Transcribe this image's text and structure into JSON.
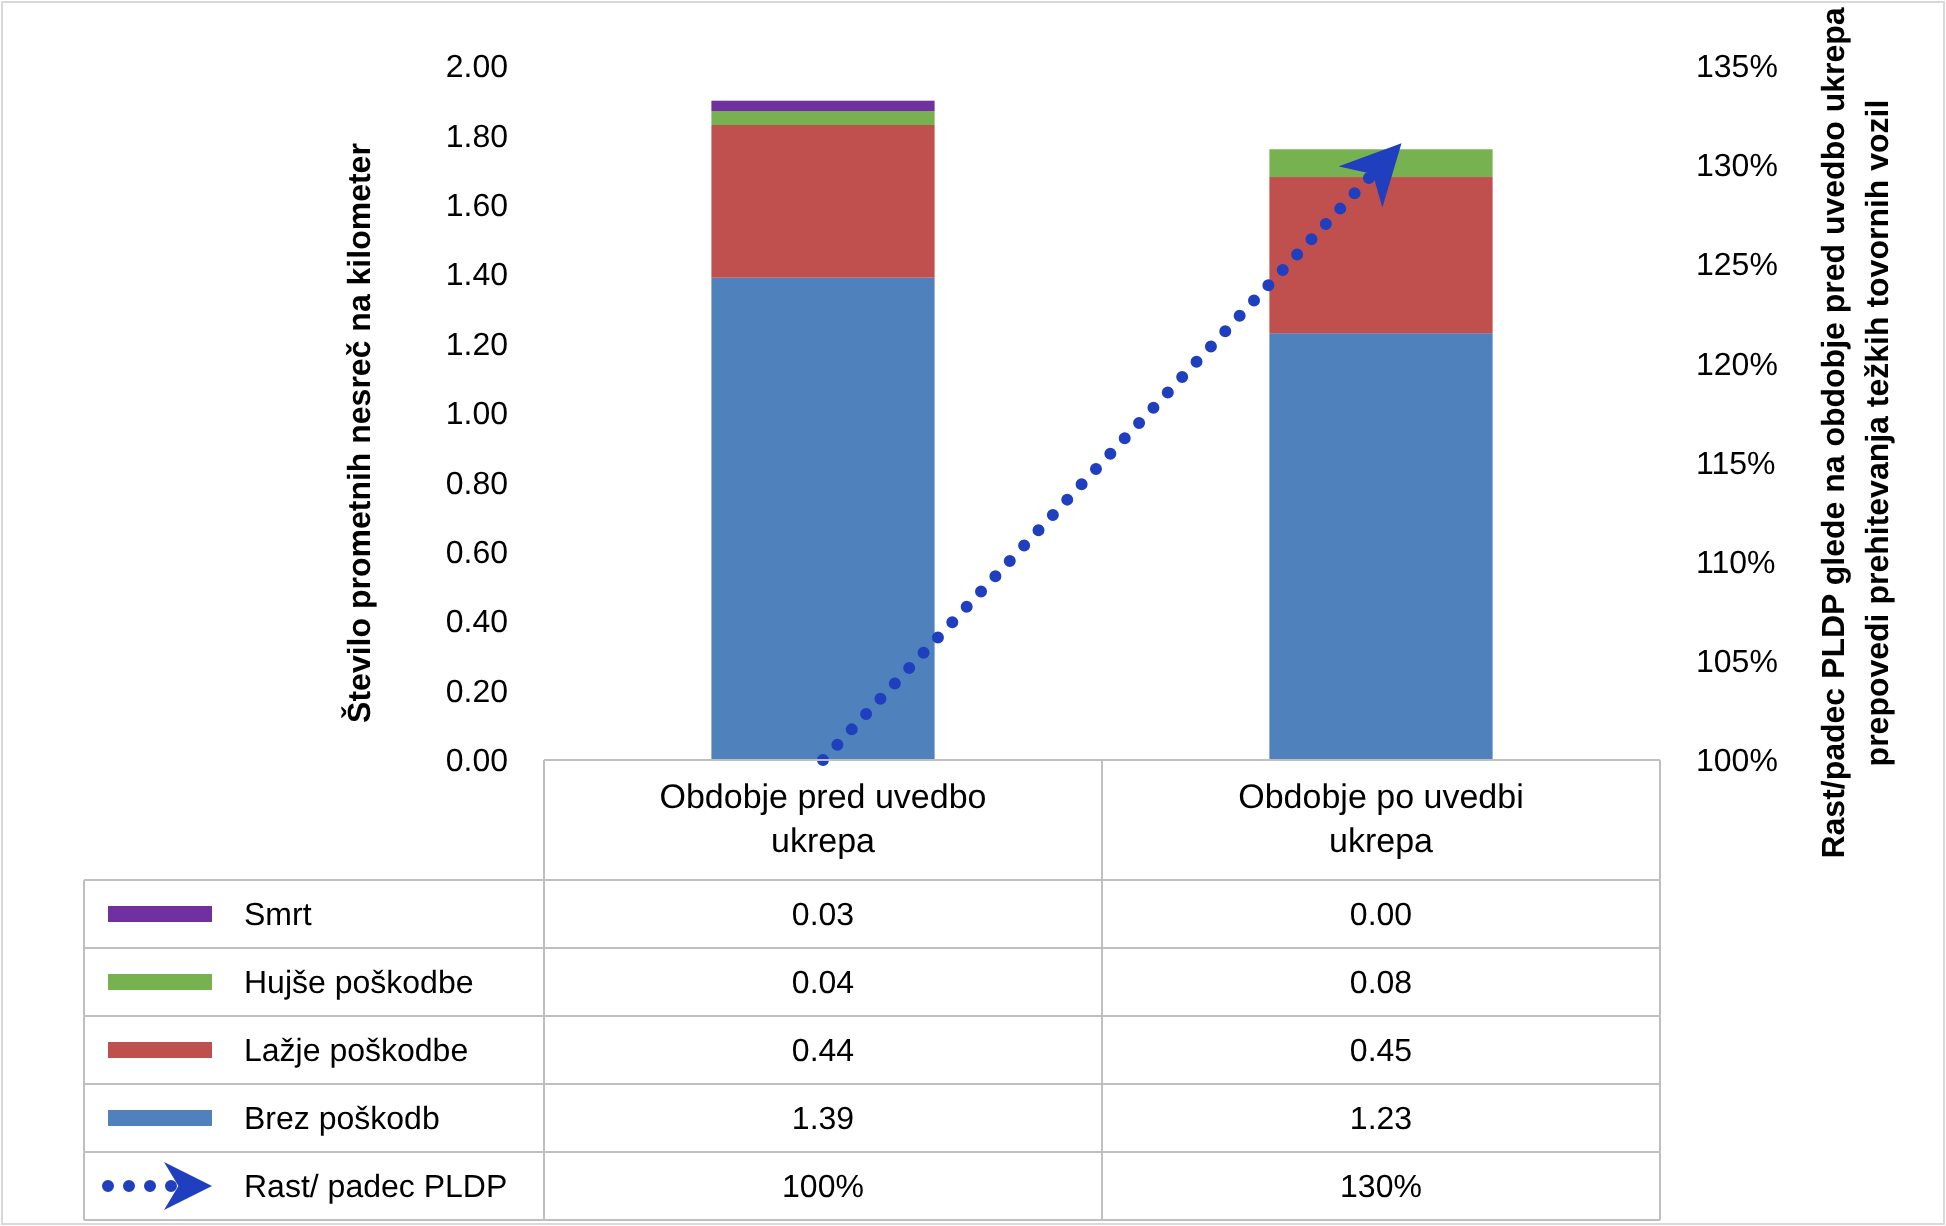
{
  "chart_data": {
    "type": "bar",
    "stacked": true,
    "ylabel": "Število prometnih nesreč na kilometer",
    "y2label": "Rast/padec PLDP glede na obdobje pred uvedbo ukrepa prepovedi prehitevanja težkih tovornih vozil",
    "categories": [
      "Obdobje pred uvedbo ukrepa",
      "Obdobje po uvedbi ukrepa"
    ],
    "ylim": [
      0,
      2
    ],
    "yticks": [
      {
        "value": 0,
        "label": "0.00"
      },
      {
        "value": 0.2,
        "label": "0.20"
      },
      {
        "value": 0.4,
        "label": "0.40"
      },
      {
        "value": 0.6,
        "label": "0.60"
      },
      {
        "value": 0.8,
        "label": "0.80"
      },
      {
        "value": 1,
        "label": "1.00"
      },
      {
        "value": 1.2,
        "label": "1.20"
      },
      {
        "value": 1.4,
        "label": "1.40"
      },
      {
        "value": 1.6,
        "label": "1.60"
      },
      {
        "value": 1.8,
        "label": "1.80"
      },
      {
        "value": 2,
        "label": "2.00"
      }
    ],
    "y2lim": [
      100,
      135
    ],
    "y2ticks": [
      {
        "value": 100,
        "label": "100%"
      },
      {
        "value": 105,
        "label": "105%"
      },
      {
        "value": 110,
        "label": "110%"
      },
      {
        "value": 115,
        "label": "115%"
      },
      {
        "value": 120,
        "label": "120%"
      },
      {
        "value": 125,
        "label": "125%"
      },
      {
        "value": 130,
        "label": "130%"
      },
      {
        "value": 135,
        "label": "135%"
      }
    ],
    "legend": "bottom",
    "series": [
      {
        "name": "Brez poškodb",
        "color": "#4f81bd",
        "values": [
          1.39,
          1.23
        ],
        "value_labels": [
          "1.39",
          "1.23"
        ]
      },
      {
        "name": "Lažje poškodbe",
        "color": "#c0504d",
        "values": [
          0.44,
          0.45
        ],
        "value_labels": [
          "0.44",
          "0.45"
        ]
      },
      {
        "name": "Hujše poškodbe",
        "color": "#77b150",
        "values": [
          0.04,
          0.08
        ],
        "value_labels": [
          "0.04",
          "0.08"
        ]
      },
      {
        "name": "Smrt",
        "color": "#7030a0",
        "values": [
          0.03,
          0.0
        ],
        "value_labels": [
          "0.03",
          "0.00"
        ]
      },
      {
        "name": "Rast/ padec PLDP",
        "type": "line",
        "axis": "y2",
        "color": "#1f3fbf",
        "line_style": "dotted",
        "values": [
          100,
          130
        ],
        "value_labels": [
          "100%",
          "130%"
        ]
      }
    ]
  }
}
